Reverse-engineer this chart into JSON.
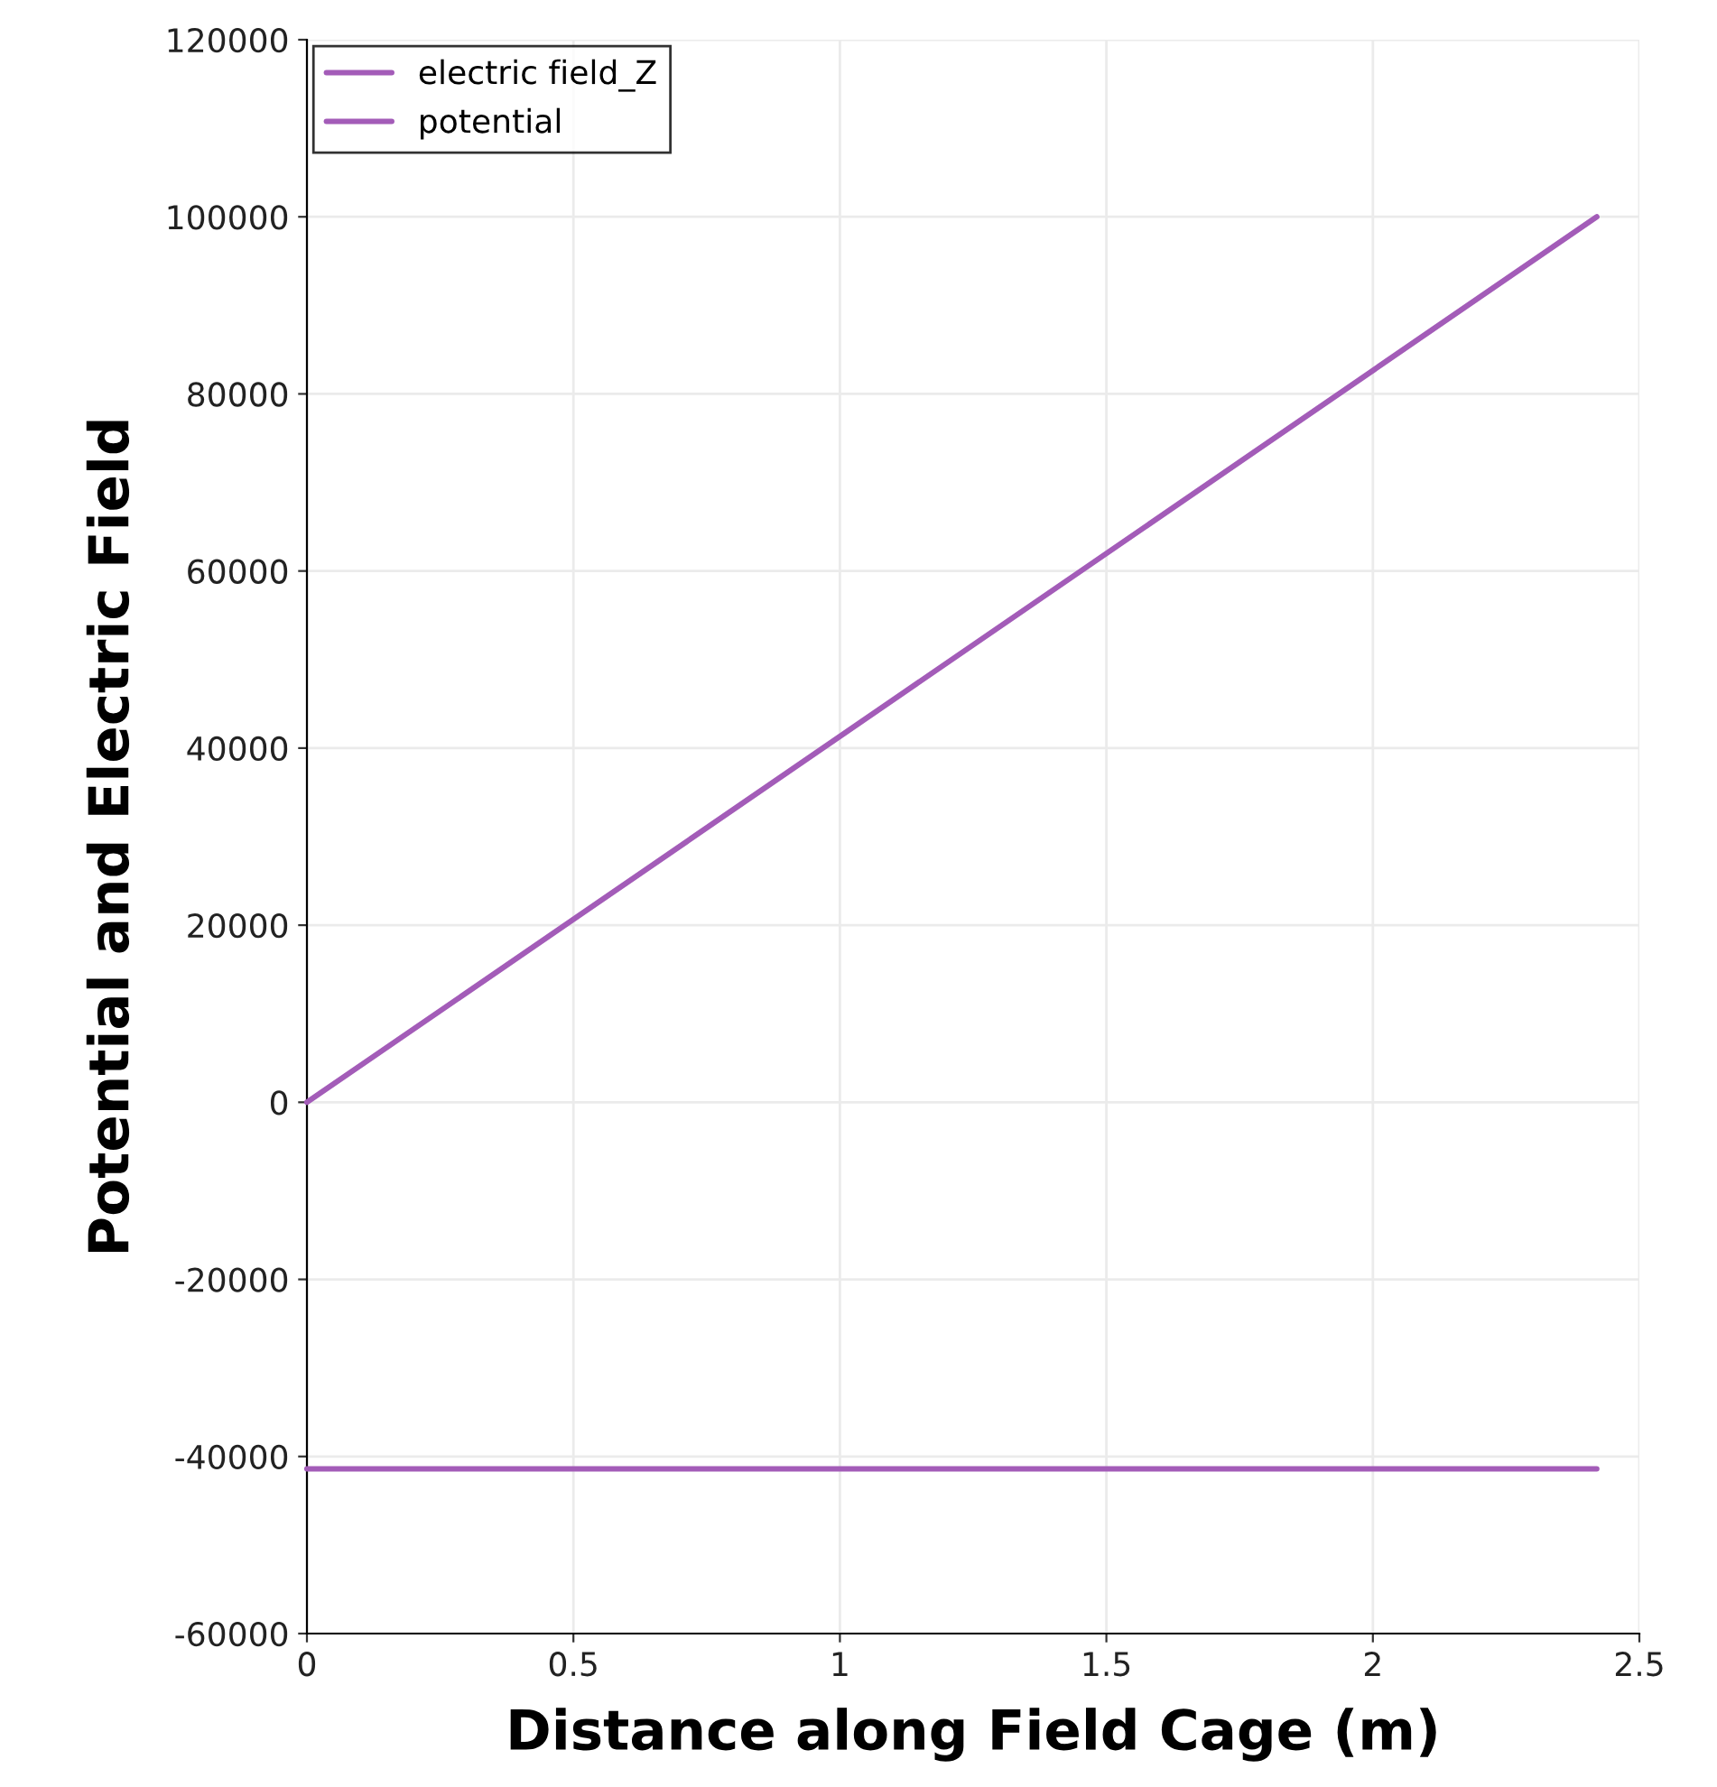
{
  "chart_data": {
    "type": "line",
    "xlabel": "Distance along Field Cage (m)",
    "ylabel": "Potential and Electric Field",
    "xlim": [
      0,
      2.5
    ],
    "xticks": [
      0,
      0.5,
      1,
      1.5,
      2,
      2.5
    ],
    "ylim": [
      -60000,
      120000
    ],
    "yticks": [
      -60000,
      -40000,
      -20000,
      0,
      20000,
      40000,
      60000,
      80000,
      100000,
      120000
    ],
    "x": [
      0,
      2.42
    ],
    "grid": true,
    "legend": "top left",
    "marker": "none",
    "line_style": "solid",
    "series": [
      {
        "name": "electric field_Z",
        "color": "#a35cb8",
        "values": [
          -41400,
          -41400
        ]
      },
      {
        "name": "potential",
        "color": "#a35cb8",
        "values": [
          0,
          100000
        ]
      }
    ]
  }
}
